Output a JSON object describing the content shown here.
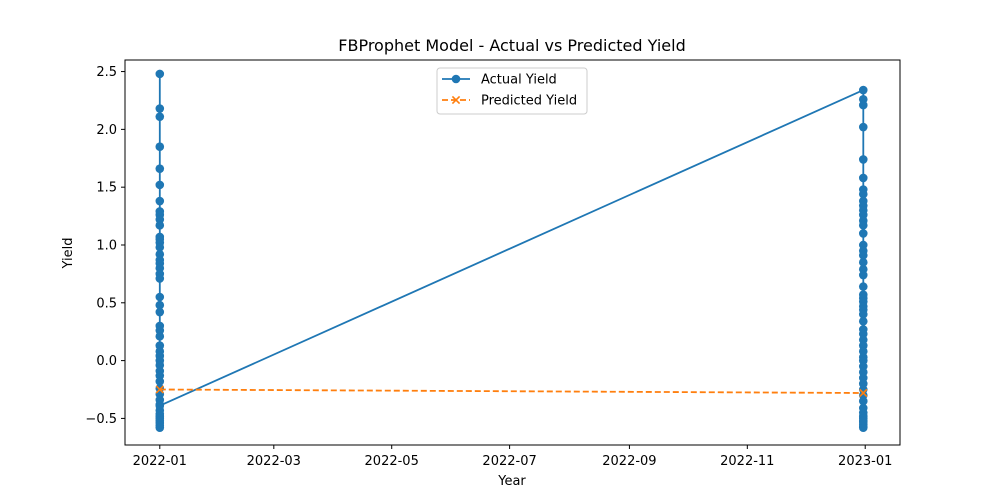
{
  "chart_data": {
    "type": "line",
    "title": "FBProphet Model - Actual vs Predicted Yield",
    "xlabel": "Year",
    "ylabel": "Yield",
    "x_range": [
      "2021-12-14",
      "2023-01-19"
    ],
    "ylim": [
      -0.73,
      2.6
    ],
    "x_ticks": [
      {
        "date": "2022-01-01",
        "label": "2022-01"
      },
      {
        "date": "2022-03-01",
        "label": "2022-03"
      },
      {
        "date": "2022-05-01",
        "label": "2022-05"
      },
      {
        "date": "2022-07-01",
        "label": "2022-07"
      },
      {
        "date": "2022-09-01",
        "label": "2022-09"
      },
      {
        "date": "2022-11-01",
        "label": "2022-11"
      },
      {
        "date": "2023-01-01",
        "label": "2023-01"
      }
    ],
    "y_ticks": [
      -0.5,
      0.0,
      0.5,
      1.0,
      1.5,
      2.0,
      2.5
    ],
    "y_tick_labels": [
      "−0.5",
      "0.0",
      "0.5",
      "1.0",
      "1.5",
      "2.0",
      "2.5"
    ],
    "grid": false,
    "legend": "upper center",
    "series": [
      {
        "name": "Actual Yield",
        "color": "#1f77b4",
        "marker": "circle",
        "line_style": "solid",
        "points": [
          {
            "x": "2022-01-01",
            "y": [
              2.48,
              2.18,
              2.11,
              1.85,
              1.66,
              1.52,
              1.38,
              1.29,
              1.26,
              1.22,
              1.17,
              1.07,
              1.05,
              1.02,
              0.98,
              0.92,
              0.87,
              0.84,
              0.8,
              0.75,
              0.71,
              0.55,
              0.48,
              0.42,
              0.3,
              0.26,
              0.21,
              0.13,
              0.08,
              0.04,
              0.0,
              -0.04,
              -0.09,
              -0.13,
              -0.18,
              -0.24,
              -0.29,
              -0.34,
              -0.38,
              -0.43,
              -0.46,
              -0.48,
              -0.5,
              -0.52,
              -0.54,
              -0.56,
              -0.58,
              -0.39
            ]
          },
          {
            "x": "2022-12-31",
            "y": [
              2.34,
              2.26,
              2.21,
              2.02,
              1.74,
              1.58,
              1.48,
              1.44,
              1.38,
              1.34,
              1.3,
              1.26,
              1.21,
              1.17,
              1.1,
              1.0,
              0.95,
              0.91,
              0.85,
              0.79,
              0.74,
              0.64,
              0.57,
              0.54,
              0.51,
              0.47,
              0.44,
              0.4,
              0.34,
              0.27,
              0.23,
              0.18,
              0.13,
              0.08,
              0.03,
              0.0,
              -0.05,
              -0.1,
              -0.15,
              -0.2,
              -0.25,
              -0.3,
              -0.35,
              -0.41,
              -0.45,
              -0.48,
              -0.5,
              -0.53,
              -0.55,
              -0.57,
              -0.58,
              -0.52
            ]
          }
        ]
      },
      {
        "name": "Predicted Yield",
        "color": "#ff7f0e",
        "marker": "x",
        "line_style": "dashed",
        "points": [
          {
            "x": "2022-01-01",
            "y": [
              -0.25
            ]
          },
          {
            "x": "2022-12-31",
            "y": [
              -0.28
            ]
          }
        ]
      }
    ]
  }
}
